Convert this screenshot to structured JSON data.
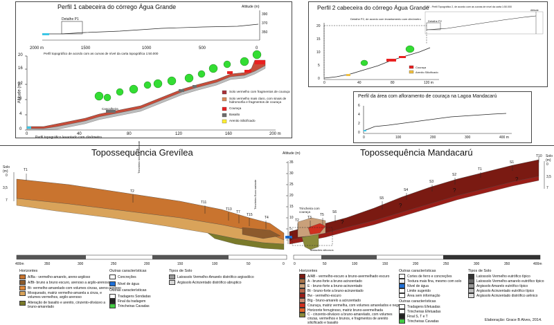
{
  "panel1": {
    "title": "Perfil 1 cabeceira do córrego Água Grande",
    "inset_label": "Detalhe P1",
    "inset_caption": "Perfil topográfico de acordo com as curvas de nível da carta topográfica 1:50.000",
    "inset_axis_title": "Altitude (m)",
    "inset_y_ticks": [
      "390",
      "370",
      "350"
    ],
    "inset_x_ticks": [
      "2000 m",
      "1500",
      "1000",
      "500",
      "0"
    ],
    "y_axis_title": "Altitude (m)",
    "y_ticks": [
      "0",
      "4",
      "8",
      "12",
      "16",
      "20"
    ],
    "x_ticks": [
      "0",
      "40",
      "80",
      "120",
      "160",
      "200 m"
    ],
    "x_caption": "Perfil topográfico levantado com clinômetro",
    "callout": "Cascalheira",
    "legend": [
      {
        "label": "Solo vermelho com fragmentos de couraça",
        "color": "#a8323a"
      },
      {
        "label": "Solo vermelho mais claro, com sinais de hidromorfia e fragmentos de couraça",
        "color": "#d98a5a"
      },
      {
        "label": "Couraça",
        "color": "#e82020"
      },
      {
        "label": "Basalto",
        "color": "#6d6d6d"
      },
      {
        "label": "Arenito Silicificado",
        "color": "#ffee33"
      }
    ]
  },
  "panel2": {
    "title": "Perfil 2 cabeceira do córrego Água Grande",
    "inset_caption": "P2 - Perfil Topográfico 2, de acordo com as curvas de nível da carta 1:50.000",
    "detail_caption": "Detalhe P2, de acordo com levantamento com clinômetro",
    "detail_label": "Detalhe P2",
    "inset_axis_title": "Altitude",
    "y_ticks": [
      "0",
      "5",
      "10",
      "15",
      "20"
    ],
    "x_ticks": [
      "0",
      "40",
      "80",
      "120 m"
    ],
    "legend": [
      {
        "label": "Couraça",
        "color": "#e82020"
      },
      {
        "label": "Arenito Silicificado",
        "color": "#f0c040"
      }
    ]
  },
  "panel3": {
    "title": "Perfil da área com afloramento de couraça na Lagoa Mandacarú",
    "y_ticks": [
      "0",
      "2",
      "4",
      "6"
    ],
    "x_ticks": [
      "0",
      "100",
      "200",
      "300",
      "400 m"
    ]
  },
  "bottom": {
    "title_left": "Topossequência Grevílea",
    "title_right": "Topossequência Mandacarú",
    "center_axis_title": "Altitude (m)",
    "center_ticks": [
      "35",
      "30",
      "25",
      "20",
      "15",
      "10",
      "5",
      "0"
    ],
    "left_axis": {
      "title": "Solo (m)",
      "ticks": [
        "0",
        "3,5",
        "7"
      ]
    },
    "right_axis": {
      "title": "Solo (m)",
      "ticks": [
        "0",
        "3,5",
        "7"
      ]
    },
    "left_trench_labels": [
      "T1",
      "T2",
      "T11",
      "T13",
      "T7",
      "T15",
      "T4"
    ],
    "right_trench_labels": [
      "T10",
      "T1",
      "S1",
      "S2",
      "S3",
      "S4",
      "S5",
      "S6",
      "T2",
      "T3",
      "T5"
    ],
    "left_annotations": [
      "Trincheira medida variante",
      "Trincheira Euca variante"
    ],
    "center_annotations": [
      "Trincheira com couraça",
      "Matacões silicosos"
    ],
    "left_scale": [
      "400m",
      "350",
      "300",
      "250",
      "200",
      "150",
      "100",
      "50",
      "0"
    ],
    "right_scale": [
      "0",
      "50",
      "100",
      "150",
      "200",
      "250",
      "300",
      "350",
      "400m"
    ],
    "question": "?",
    "left_legend": {
      "horizons_title": "Horizontes",
      "horizons": [
        {
          "label": "A/Ba - vermelho-amarelo, areno-argiloso",
          "color": "#c9742f"
        },
        {
          "label": "A/Bt- bruno a bruno escuro, arenoso a argilo-arenoso",
          "color": "#8c5a2c"
        },
        {
          "label": "Bt- vermelho-amarelado com volumes cinzas, areno-argiloso",
          "color": "#e08a3c"
        },
        {
          "label": "Mosqueado, matriz vermelho-amarela a cinza, e volumes vermelhos, argilo-arenoso",
          "color": "#d9a35a"
        },
        {
          "label": "Alteração de basalto e arenito, cinzento-oliváceo a bruno-amarelado",
          "color": "#7a7a2a"
        }
      ],
      "other_title": "Outras características",
      "other": [
        "Concreções",
        "Nível de água"
      ],
      "other2_title": "Outras características",
      "other2": [
        "Tradagens Sondadas",
        "Final da tradagem",
        "Trincheiras Cavadas"
      ],
      "soils_title": "Tipos de Solo",
      "soils": [
        {
          "label": "Latossolo Vermelho-Amarelo distrófico argissólico",
          "color": "#9a9a9a"
        },
        {
          "label": "Argissolo Acinzentado distrófico abruptico",
          "color": "#d8d8d8"
        }
      ]
    },
    "right_legend": {
      "horizons_title": "Horizontes",
      "horizons": [
        {
          "label": "A/AB - vermelho-escuro a bruno-avermelhado escuro",
          "color": "#7a1a12"
        },
        {
          "label": "A - bruno-forte a bruno-acinzentado",
          "color": "#a8734a"
        },
        {
          "label": "E - bruno-forte a bruno-acinzentado",
          "color": "#c9a07a"
        },
        {
          "label": "Bt - bruno-forte a bruno-acinzentado",
          "color": "#b5654a"
        },
        {
          "label": "Bw - vermelho-escuro",
          "color": "#9a1e18"
        },
        {
          "label": "Btg - bruno-amarelo a acinzentado",
          "color": "#c98a70"
        },
        {
          "label": "Couraça, matriz vermelha, com volumes amarelados e negros",
          "color": "#d03020"
        },
        {
          "label": "Horizonte ferruginoso, matriz bruno-avermelhada",
          "color": "#e0622a"
        },
        {
          "label": "C - cinzento-oliváceo a bruno-amarelado, com volumes cinzas, vermelhos e brunos, e fragmentos de arenito silicificado e basalto",
          "color": "#8a8a3a"
        }
      ],
      "other_title": "Outras características",
      "other": [
        "Cortes de ferro e concreções",
        "Textura mais fina, mesmo com solo",
        "Nível de água",
        "Limite sugerido",
        "Área sem informação"
      ],
      "other2_title": "Outras características",
      "other2": [
        "Tradagens Efetuadas",
        "Trincheiras Efetuadas",
        "Final S, T e T",
        "Trincheiras Cavadas"
      ],
      "soils_title": "Tipos de Solo",
      "soils": [
        {
          "label": "Latossolo Vermelho eutrófico típico",
          "color": "#333333"
        },
        {
          "label": "Latossolo Vermelho-amarelo eutrófico típico",
          "color": "#666666"
        },
        {
          "label": "Argissolo Amarelo eutrófico típico",
          "color": "#999999"
        },
        {
          "label": "Argissolo Acinzentado eutrófico típico",
          "color": "#bbbbbb"
        },
        {
          "label": "Argissolo Acinzentado distrófico arênico",
          "color": "#dddddd"
        }
      ]
    },
    "credit": "Elaboração: Grace B Alves, 2014."
  }
}
